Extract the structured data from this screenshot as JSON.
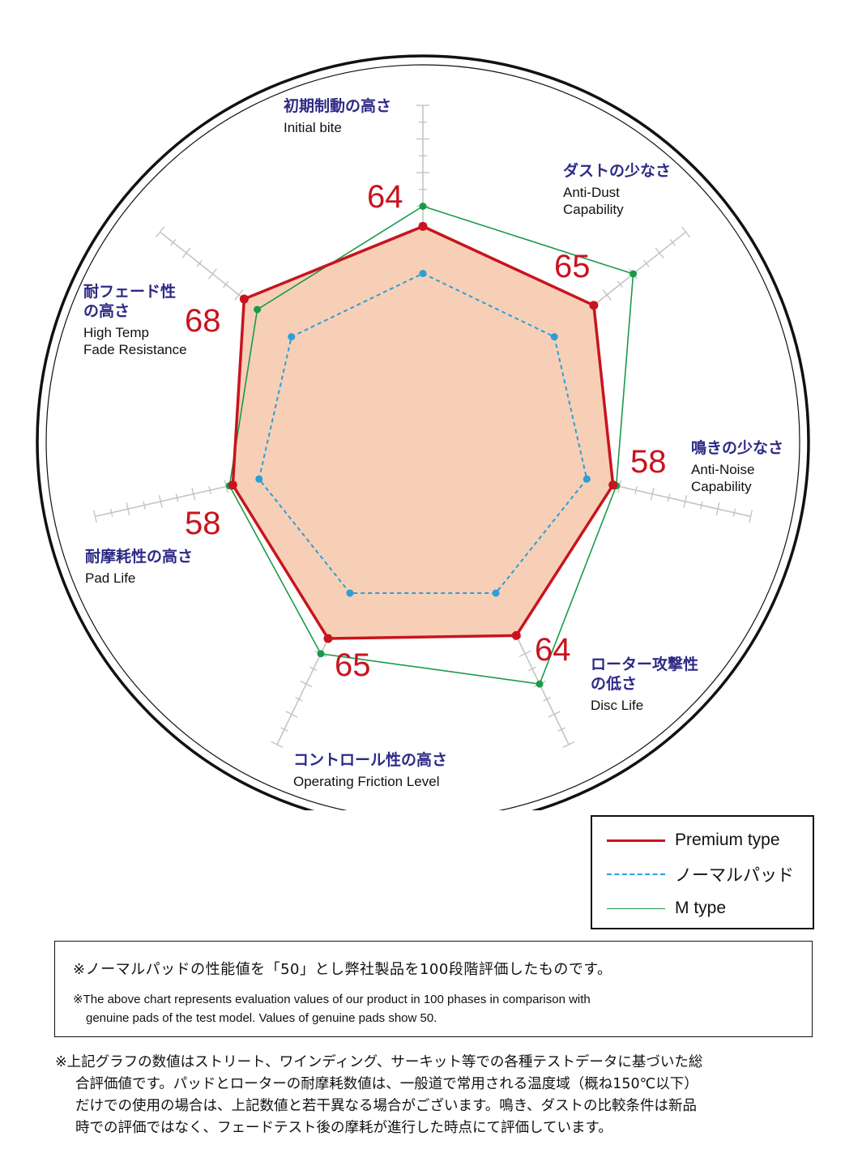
{
  "chart_data": {
    "type": "radar",
    "axes": [
      {
        "jp": "初期制動の高さ",
        "en": [
          "Initial bite"
        ]
      },
      {
        "jp": "ダストの少なさ",
        "en": [
          "Anti-Dust",
          "Capability"
        ]
      },
      {
        "jp": "鳴きの少なさ",
        "en": [
          "Anti-Noise",
          "Capability"
        ]
      },
      {
        "jp": "ローター攻撃性\nの低さ",
        "en": [
          "Disc Life"
        ]
      },
      {
        "jp": "コントロール性の高さ",
        "en": [
          "Operating Friction Level"
        ]
      },
      {
        "jp": "耐摩耗性の高さ",
        "en": [
          "Pad Life"
        ]
      },
      {
        "jp": "耐フェード性\nの高さ",
        "en": [
          "High Temp",
          "Fade Resistance"
        ]
      }
    ],
    "rmax": 100,
    "series": [
      {
        "name": "Premium type",
        "values": [
          64,
          65,
          58,
          64,
          65,
          58,
          68
        ],
        "color": "#c8141e",
        "style": "solid",
        "fill": "#f7cfb6"
      },
      {
        "name": "ノーマルパッド",
        "values": [
          50,
          50,
          50,
          50,
          50,
          50,
          50
        ],
        "color": "#2a9fd8",
        "style": "dashed"
      },
      {
        "name": "M type",
        "values": [
          70,
          80,
          59,
          80,
          70,
          59,
          63
        ],
        "color": "#1a9a4a",
        "style": "solid"
      }
    ],
    "value_labels": [
      "64",
      "65",
      "58",
      "64",
      "65",
      "58",
      "68"
    ]
  },
  "legend": {
    "items": [
      {
        "label": "Premium type"
      },
      {
        "label": "ノーマルパッド"
      },
      {
        "label": "M type"
      }
    ]
  },
  "notes": {
    "jp": "※ノーマルパッドの性能値を「50」とし弊社製品を100段階評価したものです。",
    "en1": "※The above chart represents evaluation values of our product in 100 phases in comparison with",
    "en2": "genuine pads of the test model.  Values of genuine pads show 50."
  },
  "footnote": {
    "line1": "※上記グラフの数値はストリート、ワインディング、サーキット等での各種テストデータに基づいた総",
    "line2": "合評価値です。パッドとローターの耐摩耗数値は、一般道で常用される温度域（概ね150℃以下）",
    "line3": "だけでの使用の場合は、上記数値と若干異なる場合がございます。鳴き、ダストの比較条件は新品",
    "line4": "時での評価ではなく、フェードテスト後の摩耗が進行した時点にて評価しています。"
  }
}
